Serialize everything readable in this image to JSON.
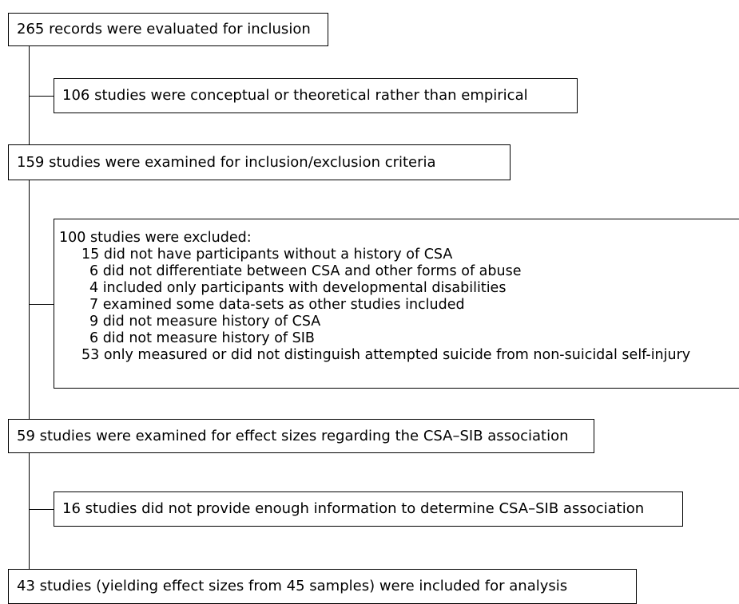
{
  "flowchart": {
    "boxes": {
      "records_evaluated": "265 records were evaluated for inclusion",
      "conceptual_excluded": "106 studies were conceptual or theoretical rather than empirical",
      "criteria_examined": "159 studies were examined for inclusion/exclusion criteria",
      "excluded_header": "100 studies were excluded:",
      "excluded_reasons": [
        "15 did not have participants without a history of CSA",
        "6 did not differentiate between CSA and other forms of abuse",
        "4 included only participants with developmental disabilities",
        "7 examined some data-sets as other studies included",
        "9 did not measure history of CSA",
        "6 did not measure history of SIB",
        "53 only measured or did not distinguish attempted suicide from non-suicidal self-injury"
      ],
      "effect_sizes_examined": "59 studies were examined for effect sizes regarding the CSA–SIB association",
      "insufficient_info": "16 studies did not provide enough information to determine CSA–SIB association",
      "included_analysis": "43 studies (yielding effect sizes from 45 samples) were included for analysis"
    }
  }
}
